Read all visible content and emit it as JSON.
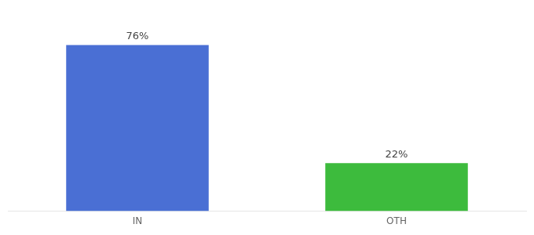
{
  "chart_data": {
    "type": "bar",
    "categories": [
      "IN",
      "OTH"
    ],
    "values": [
      76,
      22
    ],
    "value_labels": [
      "76%",
      "22%"
    ],
    "colors": [
      "#4a6fd4",
      "#3dbb3d"
    ],
    "ylim": [
      0,
      88
    ],
    "data_labels": true,
    "grid": false,
    "tick_labels": "x"
  }
}
